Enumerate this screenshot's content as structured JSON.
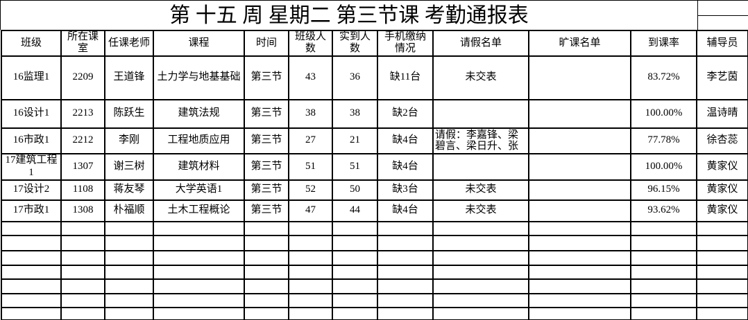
{
  "title": "第 十五 周 星期二 第三节课 考勤通报表",
  "colors": {
    "grid": "#000000",
    "background": "#ffffff",
    "text": "#000000"
  },
  "table": {
    "headers": [
      "班级",
      "所在课室",
      "任课老师",
      "课程",
      "时间",
      "班级人数",
      "实到人数",
      "手机缴纳情况",
      "请假名单",
      "旷课名单",
      "到课率",
      "辅导员"
    ],
    "rows": [
      [
        "16监理1",
        "2209",
        "王道锋",
        "土力学与地基基础",
        "第三节",
        "43",
        "36",
        "缺11台",
        "未交表",
        "",
        "83.72%",
        "李艺茵"
      ],
      [
        "16设计1",
        "2213",
        "陈跃生",
        "建筑法规",
        "第三节",
        "38",
        "38",
        "缺2台",
        "",
        "",
        "100.00%",
        "温诗晴"
      ],
      [
        "16市政1",
        "2212",
        "李刚",
        "工程地质应用",
        "第三节",
        "27",
        "21",
        "缺4台",
        "请假：李嘉锋、梁碧言、梁日升、张",
        "",
        "77.78%",
        "徐杏蕊"
      ],
      [
        "17建筑工程1",
        "1307",
        "谢三树",
        "建筑材料",
        "第三节",
        "51",
        "51",
        "缺4台",
        "",
        "",
        "100.00%",
        "黄家仪"
      ],
      [
        "17设计2",
        "1108",
        "蒋友琴",
        "大学英语1",
        "第三节",
        "52",
        "50",
        "缺3台",
        "未交表",
        "",
        "96.15%",
        "黄家仪"
      ],
      [
        "17市政1",
        "1308",
        "朴福顺",
        "土木工程概论",
        "第三节",
        "47",
        "44",
        "缺4台",
        "未交表",
        "",
        "93.62%",
        "黄家仪"
      ]
    ],
    "empty_row_count": 7
  }
}
